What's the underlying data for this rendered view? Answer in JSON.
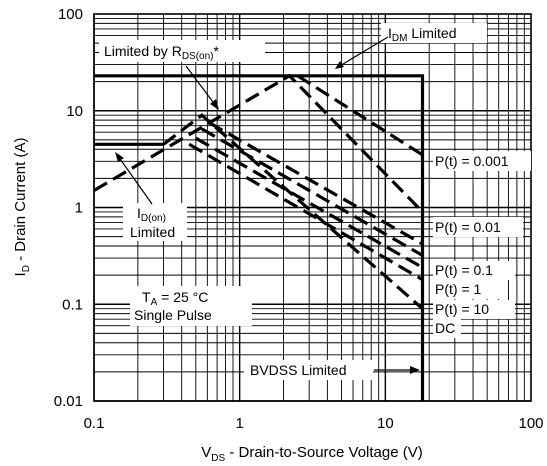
{
  "chart_data": {
    "type": "line",
    "x_scale": "log",
    "y_scale": "log",
    "xlim": [
      0.1,
      100
    ],
    "ylim": [
      0.01,
      100
    ],
    "grid": true,
    "x_ticks": [
      "0.1",
      "1",
      "10",
      "100"
    ],
    "y_ticks": [
      "100",
      "10",
      "1",
      "0.1",
      "0.01"
    ],
    "xlabel": {
      "main": "V",
      "sub": "DS",
      "rest": " - Drain-to-Source Voltage (V)"
    },
    "ylabel": {
      "main": "I",
      "sub": "D",
      "rest": " - Drain Current (A)"
    },
    "series": [
      {
        "style": "solid",
        "points": [
          [
            0.1,
            23
          ],
          [
            18,
            23
          ],
          [
            18,
            0.01
          ]
        ]
      },
      {
        "style": "solid",
        "points": [
          [
            0.1,
            4.5
          ],
          [
            0.3,
            4.5
          ]
        ]
      },
      {
        "style": "dashed",
        "points": [
          [
            0.1,
            1.5
          ],
          [
            2.2,
            23
          ],
          [
            18,
            0.9
          ]
        ]
      },
      {
        "style": "dashed",
        "points": [
          [
            0.3,
            4.5
          ],
          [
            0.55,
            9
          ],
          [
            18,
            0.09
          ]
        ]
      },
      {
        "style": "dashed",
        "points": [
          [
            0.45,
            4.5
          ],
          [
            18,
            0.18
          ]
        ]
      },
      {
        "style": "dashed",
        "points": [
          [
            0.5,
            5.2
          ],
          [
            18,
            0.24
          ]
        ]
      },
      {
        "style": "dashed",
        "points": [
          [
            0.55,
            6.5
          ],
          [
            18,
            0.32
          ]
        ]
      },
      {
        "style": "dashed",
        "points": [
          [
            0.62,
            7.5
          ],
          [
            18,
            0.42
          ]
        ]
      },
      {
        "style": "dashed",
        "points": [
          [
            2.5,
            23
          ],
          [
            18,
            3.5
          ]
        ]
      }
    ],
    "annotations": {
      "idm": {
        "main": "I",
        "sub": "DM",
        "rest": " Limited"
      },
      "rds": {
        "main": "Limited by R",
        "sub": "DS(on)",
        "rest": "*"
      },
      "p0001": "P(t) = 0.001",
      "p001": "P(t) = 0.01",
      "p01": "P(t) = 0.1",
      "p1": "P(t) = 1",
      "p10": "P(t) = 10",
      "dc": "DC",
      "idon": {
        "main": "I",
        "sub": "D(on)"
      },
      "idon_2": "Limited",
      "ta": {
        "main": "T",
        "sub": "A",
        "rest": " = 25 °C"
      },
      "single": "Single Pulse",
      "bvdss": "BVDSS Limited"
    }
  }
}
